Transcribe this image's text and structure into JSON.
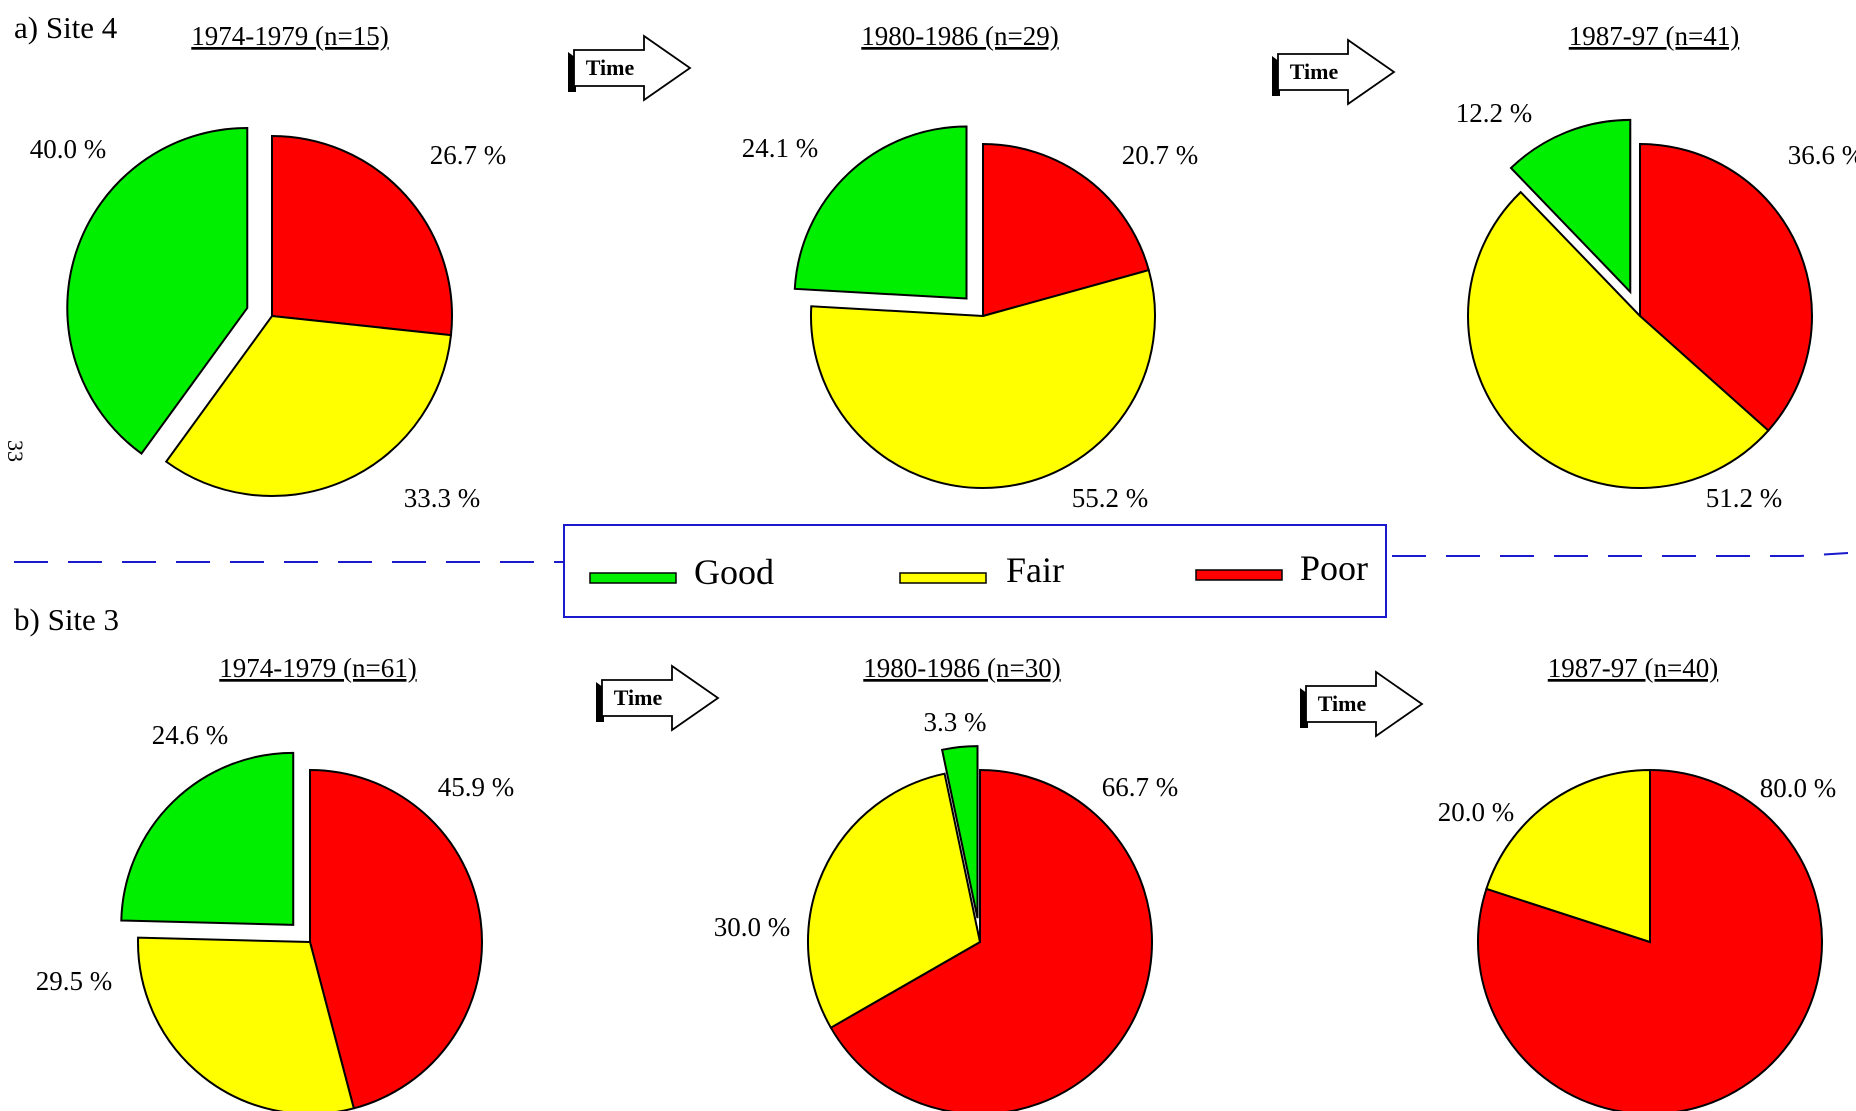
{
  "page_number": "33",
  "colors": {
    "good": "#00ee00",
    "fair": "#ffff00",
    "poor": "#ff0000",
    "divider": "#1a1acc"
  },
  "legend": {
    "items": [
      {
        "key": "good",
        "label": "Good"
      },
      {
        "key": "fair",
        "label": "Fair"
      },
      {
        "key": "poor",
        "label": "Poor"
      }
    ]
  },
  "time_arrows": [
    "Time",
    "Time",
    "Time",
    "Time"
  ],
  "sites": [
    {
      "label": "a) Site 4"
    },
    {
      "label": "b) Site 3"
    }
  ],
  "chart_data": [
    {
      "type": "pie",
      "site": "a) Site 4",
      "title": "1974-1979 (n=15)",
      "slices": [
        {
          "name": "Poor",
          "value": 26.7,
          "label": "26.7 %"
        },
        {
          "name": "Fair",
          "value": 33.3,
          "label": "33.3 %"
        },
        {
          "name": "Good",
          "value": 40.0,
          "label": "40.0 %"
        }
      ],
      "exploded": "Good"
    },
    {
      "type": "pie",
      "site": "a) Site 4",
      "title": "1980-1986  (n=29)",
      "slices": [
        {
          "name": "Poor",
          "value": 20.7,
          "label": "20.7 %"
        },
        {
          "name": "Fair",
          "value": 55.2,
          "label": "55.2 %"
        },
        {
          "name": "Good",
          "value": 24.1,
          "label": "24.1 %"
        }
      ],
      "exploded": "Good"
    },
    {
      "type": "pie",
      "site": "a) Site 4",
      "title": "1987-97 (n=41)",
      "slices": [
        {
          "name": "Poor",
          "value": 36.6,
          "label": "36.6 %"
        },
        {
          "name": "Fair",
          "value": 51.2,
          "label": "51.2 %"
        },
        {
          "name": "Good",
          "value": 12.2,
          "label": "12.2 %"
        }
      ],
      "exploded": "Good"
    },
    {
      "type": "pie",
      "site": "b) Site 3",
      "title": "1974-1979 (n=61)",
      "slices": [
        {
          "name": "Poor",
          "value": 45.9,
          "label": "45.9 %"
        },
        {
          "name": "Fair",
          "value": 29.5,
          "label": "29.5 %"
        },
        {
          "name": "Good",
          "value": 24.6,
          "label": "24.6 %"
        }
      ],
      "exploded": "Good"
    },
    {
      "type": "pie",
      "site": "b) Site 3",
      "title": "1980-1986 (n=30)",
      "slices": [
        {
          "name": "Poor",
          "value": 66.7,
          "label": "66.7 %"
        },
        {
          "name": "Fair",
          "value": 30.0,
          "label": "30.0 %"
        },
        {
          "name": "Good",
          "value": 3.3,
          "label": "3.3 %"
        }
      ],
      "exploded": "Good"
    },
    {
      "type": "pie",
      "site": "b) Site 3",
      "title": "1987-97 (n=40)",
      "slices": [
        {
          "name": "Poor",
          "value": 80.0,
          "label": "80.0 %"
        },
        {
          "name": "Fair",
          "value": 20.0,
          "label": "20.0 %"
        }
      ],
      "exploded": null
    }
  ]
}
